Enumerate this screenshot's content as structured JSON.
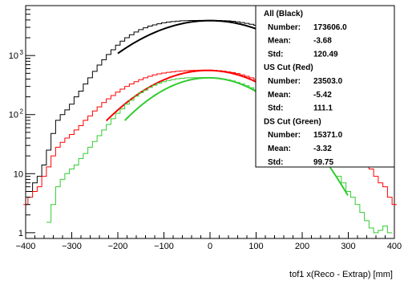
{
  "chart_data": {
    "type": "histogram",
    "xlabel": "tof1 x(Reco - Extrap) [mm]",
    "ylabel": "",
    "xlim": [
      -400,
      400
    ],
    "ylim": [
      0.8,
      7000
    ],
    "yscale": "log",
    "grid": false,
    "x_ticks": [
      "−400",
      "−300",
      "−200",
      "−100",
      "0",
      "100",
      "200",
      "300",
      "400"
    ],
    "y_ticks": [
      {
        "value": 1,
        "label": "1"
      },
      {
        "value": 10,
        "label": "10"
      },
      {
        "value": 100,
        "label": "10",
        "exp": "2"
      },
      {
        "value": 1000,
        "label": "10",
        "exp": "3"
      }
    ],
    "series": [
      {
        "name": "All (Black)",
        "color": "#000000",
        "fit": {
          "mean": 0,
          "sigma": 125,
          "peak": 3900,
          "range": [
            -200,
            300
          ]
        },
        "points": [
          [
            -390,
            5
          ],
          [
            -380,
            7
          ],
          [
            -370,
            9
          ],
          [
            -360,
            14
          ],
          [
            -350,
            25
          ],
          [
            -340,
            48
          ],
          [
            -330,
            80
          ],
          [
            -320,
            100
          ],
          [
            -310,
            120
          ],
          [
            -300,
            150
          ],
          [
            -290,
            200
          ],
          [
            -280,
            250
          ],
          [
            -270,
            330
          ],
          [
            -260,
            420
          ],
          [
            -250,
            540
          ],
          [
            -240,
            690
          ],
          [
            -230,
            850
          ],
          [
            -220,
            1040
          ],
          [
            -210,
            1250
          ],
          [
            -200,
            1500
          ],
          [
            -190,
            1750
          ],
          [
            -180,
            2000
          ],
          [
            -170,
            2250
          ],
          [
            -160,
            2500
          ],
          [
            -150,
            2750
          ],
          [
            -140,
            2950
          ],
          [
            -130,
            3150
          ],
          [
            -120,
            3300
          ],
          [
            -110,
            3450
          ],
          [
            -100,
            3580
          ],
          [
            -90,
            3680
          ],
          [
            -80,
            3760
          ],
          [
            -70,
            3820
          ],
          [
            -60,
            3870
          ],
          [
            -50,
            3900
          ],
          [
            -40,
            3920
          ],
          [
            -30,
            3930
          ],
          [
            -20,
            3940
          ],
          [
            -10,
            3945
          ],
          [
            0,
            3950
          ],
          [
            10,
            3940
          ],
          [
            20,
            3930
          ],
          [
            30,
            3900
          ],
          [
            40,
            3860
          ],
          [
            50,
            3800
          ],
          [
            60,
            3720
          ],
          [
            70,
            3620
          ],
          [
            80,
            3500
          ],
          [
            90,
            3380
          ],
          [
            100,
            3250
          ],
          [
            110,
            3100
          ]
        ]
      },
      {
        "name": "US Cut (Red)",
        "color": "#ff0000",
        "fit": {
          "mean": -5,
          "sigma": 111,
          "peak": 560,
          "range": [
            -225,
            300
          ]
        },
        "points": [
          [
            -400,
            3
          ],
          [
            -390,
            4
          ],
          [
            -380,
            5
          ],
          [
            -370,
            6
          ],
          [
            -360,
            9
          ],
          [
            -350,
            13
          ],
          [
            -340,
            20
          ],
          [
            -330,
            28
          ],
          [
            -320,
            34
          ],
          [
            -310,
            40
          ],
          [
            -300,
            46
          ],
          [
            -290,
            55
          ],
          [
            -280,
            65
          ],
          [
            -270,
            80
          ],
          [
            -260,
            95
          ],
          [
            -250,
            115
          ],
          [
            -240,
            135
          ],
          [
            -230,
            160
          ],
          [
            -220,
            185
          ],
          [
            -210,
            210
          ],
          [
            -200,
            240
          ],
          [
            -190,
            270
          ],
          [
            -180,
            300
          ],
          [
            -170,
            330
          ],
          [
            -160,
            360
          ],
          [
            -150,
            390
          ],
          [
            -140,
            420
          ],
          [
            -130,
            445
          ],
          [
            -120,
            470
          ],
          [
            -110,
            490
          ],
          [
            -100,
            505
          ],
          [
            -90,
            520
          ],
          [
            -80,
            530
          ],
          [
            -70,
            540
          ],
          [
            -60,
            548
          ],
          [
            -50,
            555
          ],
          [
            -40,
            560
          ],
          [
            -30,
            562
          ],
          [
            -20,
            565
          ],
          [
            -10,
            566
          ],
          [
            0,
            565
          ],
          [
            10,
            560
          ],
          [
            20,
            555
          ],
          [
            30,
            545
          ],
          [
            40,
            530
          ],
          [
            50,
            515
          ],
          [
            60,
            495
          ],
          [
            70,
            470
          ],
          [
            80,
            445
          ],
          [
            90,
            420
          ],
          [
            100,
            395
          ],
          [
            110,
            365
          ],
          [
            320,
            26
          ],
          [
            330,
            20
          ],
          [
            340,
            16
          ],
          [
            350,
            12
          ],
          [
            360,
            9
          ],
          [
            370,
            7
          ],
          [
            380,
            6
          ],
          [
            390,
            4
          ],
          [
            400,
            3
          ]
        ]
      },
      {
        "name": "DS Cut (Green)",
        "color": "#33cc33",
        "fit": {
          "mean": -3,
          "sigma": 99.75,
          "peak": 420,
          "range": [
            -185,
            300
          ]
        },
        "points": [
          [
            -350,
            1.5
          ],
          [
            -340,
            3
          ],
          [
            -330,
            6
          ],
          [
            -320,
            8
          ],
          [
            -310,
            10
          ],
          [
            -300,
            12
          ],
          [
            -290,
            14
          ],
          [
            -280,
            18
          ],
          [
            -270,
            22
          ],
          [
            -260,
            28
          ],
          [
            -250,
            35
          ],
          [
            -240,
            44
          ],
          [
            -230,
            55
          ],
          [
            -220,
            68
          ],
          [
            -210,
            85
          ],
          [
            -200,
            105
          ],
          [
            -190,
            125
          ],
          [
            -180,
            150
          ],
          [
            -170,
            175
          ],
          [
            -160,
            205
          ],
          [
            -150,
            235
          ],
          [
            -140,
            260
          ],
          [
            -130,
            290
          ],
          [
            -120,
            315
          ],
          [
            -110,
            340
          ],
          [
            -100,
            360
          ],
          [
            -90,
            378
          ],
          [
            -80,
            392
          ],
          [
            -70,
            404
          ],
          [
            -60,
            412
          ],
          [
            -50,
            418
          ],
          [
            -40,
            420
          ],
          [
            -30,
            422
          ],
          [
            -20,
            423
          ],
          [
            -10,
            422
          ],
          [
            0,
            420
          ],
          [
            10,
            415
          ],
          [
            20,
            408
          ],
          [
            30,
            398
          ],
          [
            40,
            385
          ],
          [
            50,
            370
          ],
          [
            60,
            350
          ],
          [
            70,
            330
          ],
          [
            80,
            308
          ],
          [
            90,
            285
          ],
          [
            100,
            262
          ],
          [
            110,
            238
          ],
          [
            280,
            9
          ],
          [
            290,
            7
          ],
          [
            300,
            5
          ],
          [
            310,
            4
          ],
          [
            320,
            3
          ],
          [
            330,
            2.2
          ],
          [
            340,
            1.6
          ],
          [
            350,
            1.2
          ],
          [
            360,
            1.0
          ],
          [
            370,
            1.1
          ],
          [
            380,
            1.3
          ],
          [
            390,
            1.0
          ]
        ]
      }
    ],
    "stats_box": {
      "placement": "top-right",
      "groups": [
        {
          "title": "All (Black)",
          "rows": [
            {
              "label": "Number:",
              "value": "173606.0"
            },
            {
              "label": "Mean:",
              "value": "-3.68"
            },
            {
              "label": "Std:",
              "value": "120.49"
            }
          ]
        },
        {
          "title": "US Cut (Red)",
          "rows": [
            {
              "label": "Number:",
              "value": "23503.0"
            },
            {
              "label": "Mean:",
              "value": "-5.42"
            },
            {
              "label": "Std:",
              "value": "111.1"
            }
          ]
        },
        {
          "title": "DS Cut (Green)",
          "rows": [
            {
              "label": "Number:",
              "value": "15371.0"
            },
            {
              "label": "Mean:",
              "value": "-3.32"
            },
            {
              "label": "Std:",
              "value": "99.75"
            }
          ]
        }
      ]
    }
  }
}
